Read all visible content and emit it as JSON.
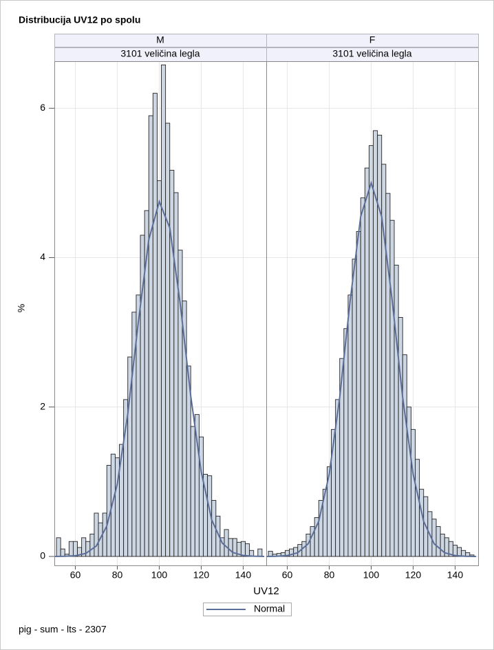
{
  "chart_data": {
    "type": "histogram",
    "title": "Distribucija UV12 po spolu",
    "xlabel": "UV12",
    "ylabel": "%",
    "footnote": "pig - sum - lts - 2307",
    "bins": [
      51,
      53,
      55,
      57,
      59,
      61,
      63,
      65,
      67,
      69,
      71,
      73,
      75,
      77,
      79,
      81,
      83,
      85,
      87,
      89,
      91,
      93,
      95,
      97,
      99,
      101,
      103,
      105,
      107,
      109,
      111,
      113,
      115,
      117,
      119,
      121,
      123,
      125,
      127,
      129,
      131,
      133,
      135,
      137,
      139,
      141,
      143,
      145,
      147,
      149
    ],
    "xlim": [
      50,
      151
    ],
    "xticks": [
      60,
      80,
      100,
      120,
      140
    ],
    "ylim": [
      -0.12,
      6.62
    ],
    "yticks": [
      0,
      2,
      4,
      6
    ],
    "grid": true,
    "bar_color": "#cdd6e3",
    "panels": [
      {
        "group": "M",
        "subgroup": "3101 veličina legla",
        "values": [
          0.25,
          0.1,
          0.03,
          0.2,
          0.2,
          0.12,
          0.25,
          0.2,
          0.3,
          0.58,
          0.45,
          0.58,
          1.22,
          1.37,
          1.32,
          1.5,
          2.1,
          2.67,
          3.27,
          3.5,
          4.3,
          4.63,
          5.9,
          6.2,
          5.03,
          6.58,
          5.8,
          5.17,
          4.87,
          4.1,
          3.42,
          2.55,
          1.74,
          1.9,
          1.6,
          1.1,
          1.08,
          0.75,
          0.54,
          0.25,
          0.36,
          0.24,
          0.24,
          0.19,
          0.2,
          0.17,
          0.08,
          0,
          0.1
        ],
        "normal": [
          0,
          0.0019,
          0.0096,
          0.041,
          0.14,
          0.408,
          0.97,
          1.91,
          3.13,
          4.24,
          4.75,
          4.4,
          3.38,
          2.15,
          1.13,
          0.49,
          0.18,
          0.053,
          0.013,
          0.003,
          0
        ]
      },
      {
        "group": "F",
        "subgroup": "3101 veličina legla",
        "values": [
          0.07,
          0.03,
          0.04,
          0.05,
          0.08,
          0.1,
          0.12,
          0.16,
          0.2,
          0.3,
          0.4,
          0.52,
          0.75,
          0.9,
          1.2,
          1.7,
          2.1,
          2.65,
          3.05,
          3.5,
          3.98,
          4.35,
          4.8,
          5.2,
          5.5,
          5.7,
          5.64,
          5.25,
          4.86,
          4.5,
          3.9,
          3.2,
          2.7,
          2.0,
          1.7,
          1.3,
          0.9,
          0.8,
          0.6,
          0.5,
          0.4,
          0.3,
          0.25,
          0.2,
          0.15,
          0.12,
          0.08,
          0.05,
          0.02
        ],
        "normal": [
          0,
          0.002,
          0.012,
          0.05,
          0.17,
          0.47,
          1.1,
          2.13,
          3.43,
          4.55,
          5.0,
          4.55,
          3.43,
          2.13,
          1.1,
          0.47,
          0.17,
          0.05,
          0.012,
          0.002,
          0
        ]
      }
    ],
    "curve": {
      "name": "Normal",
      "color": "#5b6e99",
      "x": [
        50,
        55,
        60,
        65,
        70,
        75,
        80,
        85,
        90,
        95,
        100,
        105,
        110,
        115,
        120,
        125,
        130,
        135,
        140,
        145,
        150
      ]
    }
  }
}
